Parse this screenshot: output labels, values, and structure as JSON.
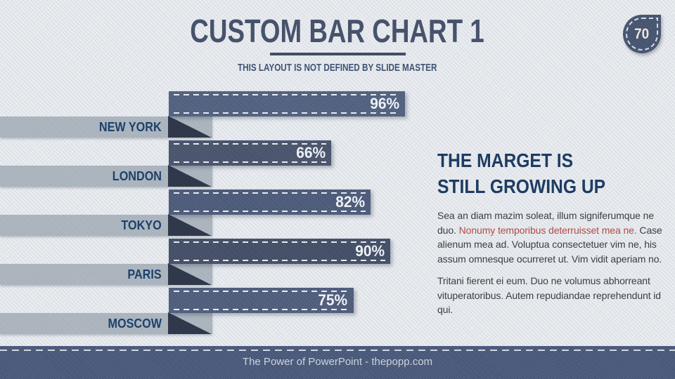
{
  "slide": {
    "title": "CUSTOM BAR CHART 1",
    "subtitle": "THIS LAYOUT IS NOT DEFINED BY SLIDE MASTER",
    "page_number": "70"
  },
  "chart_data": {
    "type": "bar",
    "orientation": "horizontal",
    "title": "",
    "categories": [
      "NEW YORK",
      "LONDON",
      "TOKYO",
      "PARIS",
      "MOSCOW"
    ],
    "values": [
      96,
      66,
      82,
      90,
      75
    ],
    "value_labels": [
      "96%",
      "66%",
      "82%",
      "90%",
      "75%"
    ],
    "unit": "%",
    "xlim": [
      0,
      100
    ],
    "grid": false,
    "legend": false,
    "bar_colors": [
      "#50607f",
      "#48536c",
      "#4b5a79",
      "#424d66",
      "#4e5c7b"
    ]
  },
  "content": {
    "heading_line1": "THE MARGET IS",
    "heading_line2": "STILL GROWING UP",
    "paragraph1_pre": "Sea an diam mazim soleat, illum signiferumque ne duo. ",
    "paragraph1_red": "Nonumy temporibus deterruisset mea ne.",
    "paragraph1_post": " Case alienum mea ad. Voluptua consectetuer vim ne, his assum omnesque ocurreret ut. Vim vidit aperiam no.",
    "paragraph2": "Tritani fierent ei eum. Duo ne volumus abhorreant vituperatoribus. Autem repudiandae reprehendunt id qui."
  },
  "footer": {
    "text": "The Power of PowerPoint - thepopp.com"
  },
  "colors": {
    "background": "#e7eaee",
    "title": "#47536b",
    "category_label": "#1d416b",
    "heading": "#1e3c63",
    "body_text": "#3b3e43",
    "red_text": "#b04b48",
    "ribbon_light": "#b0b9c2",
    "ribbon_fold": "#2c3548",
    "footer_bg": "#48587a",
    "footer_text": "#ccd3dc",
    "badge_bg": "#44536f",
    "badge_text": "#eee8d8",
    "stitch": "#f2f4f6"
  }
}
